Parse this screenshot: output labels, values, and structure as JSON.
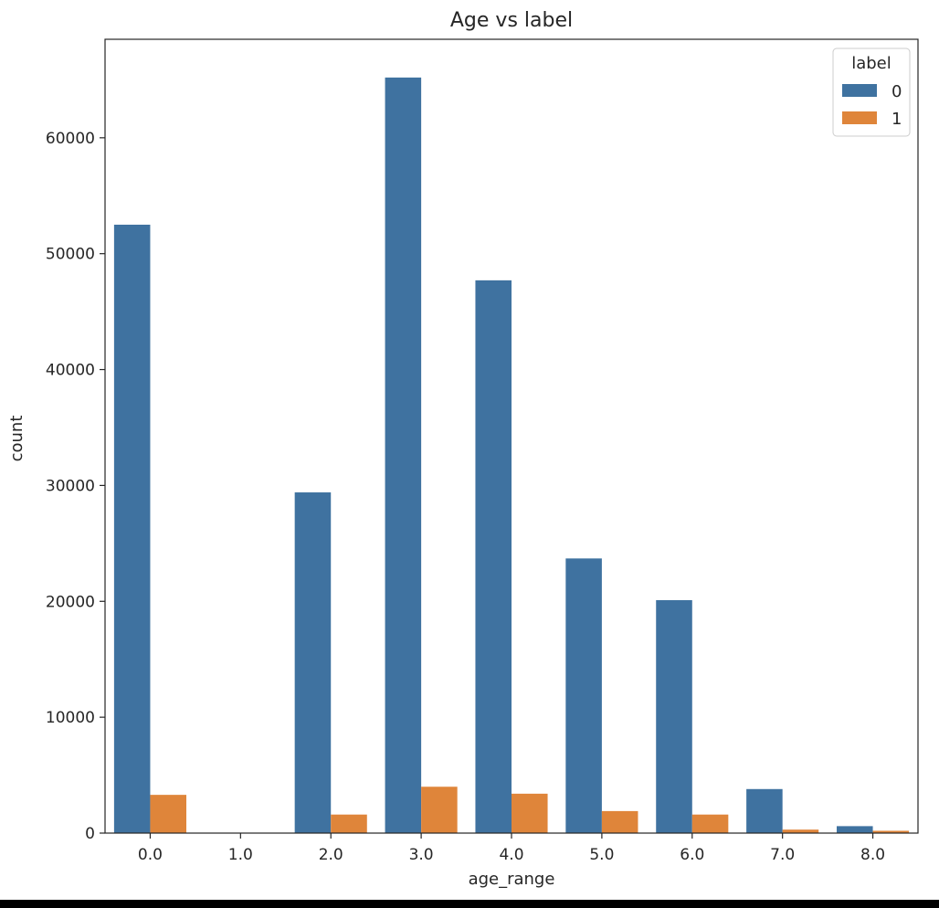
{
  "chart_data": {
    "type": "bar",
    "title": "Age vs label",
    "xlabel": "age_range",
    "ylabel": "count",
    "categories": [
      "0.0",
      "1.0",
      "2.0",
      "3.0",
      "4.0",
      "5.0",
      "6.0",
      "7.0",
      "8.0"
    ],
    "series": [
      {
        "name": "0",
        "color": "#3f72a0",
        "values": [
          52500,
          0,
          29400,
          65200,
          47700,
          23700,
          20100,
          3800,
          600
        ]
      },
      {
        "name": "1",
        "color": "#df853a",
        "values": [
          3300,
          0,
          1600,
          4000,
          3400,
          1900,
          1600,
          300,
          200
        ]
      }
    ],
    "ylim": [
      0,
      68500
    ],
    "yticks": [
      0,
      10000,
      20000,
      30000,
      40000,
      50000,
      60000
    ],
    "grid": false,
    "legend": {
      "title": "label",
      "placement": "top-right"
    }
  }
}
